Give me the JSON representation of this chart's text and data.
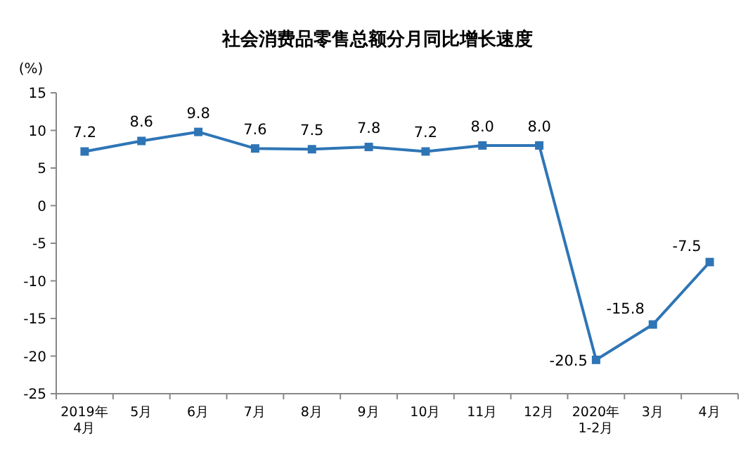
{
  "chart_data": {
    "type": "line",
    "title": "社会消费品零售总额分月同比增长速度",
    "ylabel": "(%)",
    "categories": [
      "2019年\n4月",
      "5月",
      "6月",
      "7月",
      "8月",
      "9月",
      "10月",
      "11月",
      "12月",
      "2020年\n1-2月",
      "3月",
      "4月"
    ],
    "series": [
      {
        "color": "#2e75b6",
        "values": [
          7.2,
          8.6,
          9.8,
          7.6,
          7.5,
          7.8,
          7.2,
          8.0,
          8.0,
          -20.5,
          -15.8,
          -7.5
        ],
        "value_labels": [
          "7.2",
          "8.6",
          "9.8",
          "7.6",
          "7.5",
          "7.8",
          "7.2",
          "8.0",
          "8.0",
          "-20.5",
          "-15.8",
          "-7.5"
        ]
      }
    ],
    "ylim": [
      -25,
      15
    ],
    "yticks": [
      -25,
      -20,
      -15,
      -10,
      -5,
      0,
      5,
      10,
      15
    ],
    "marker": "square",
    "grid": false
  }
}
